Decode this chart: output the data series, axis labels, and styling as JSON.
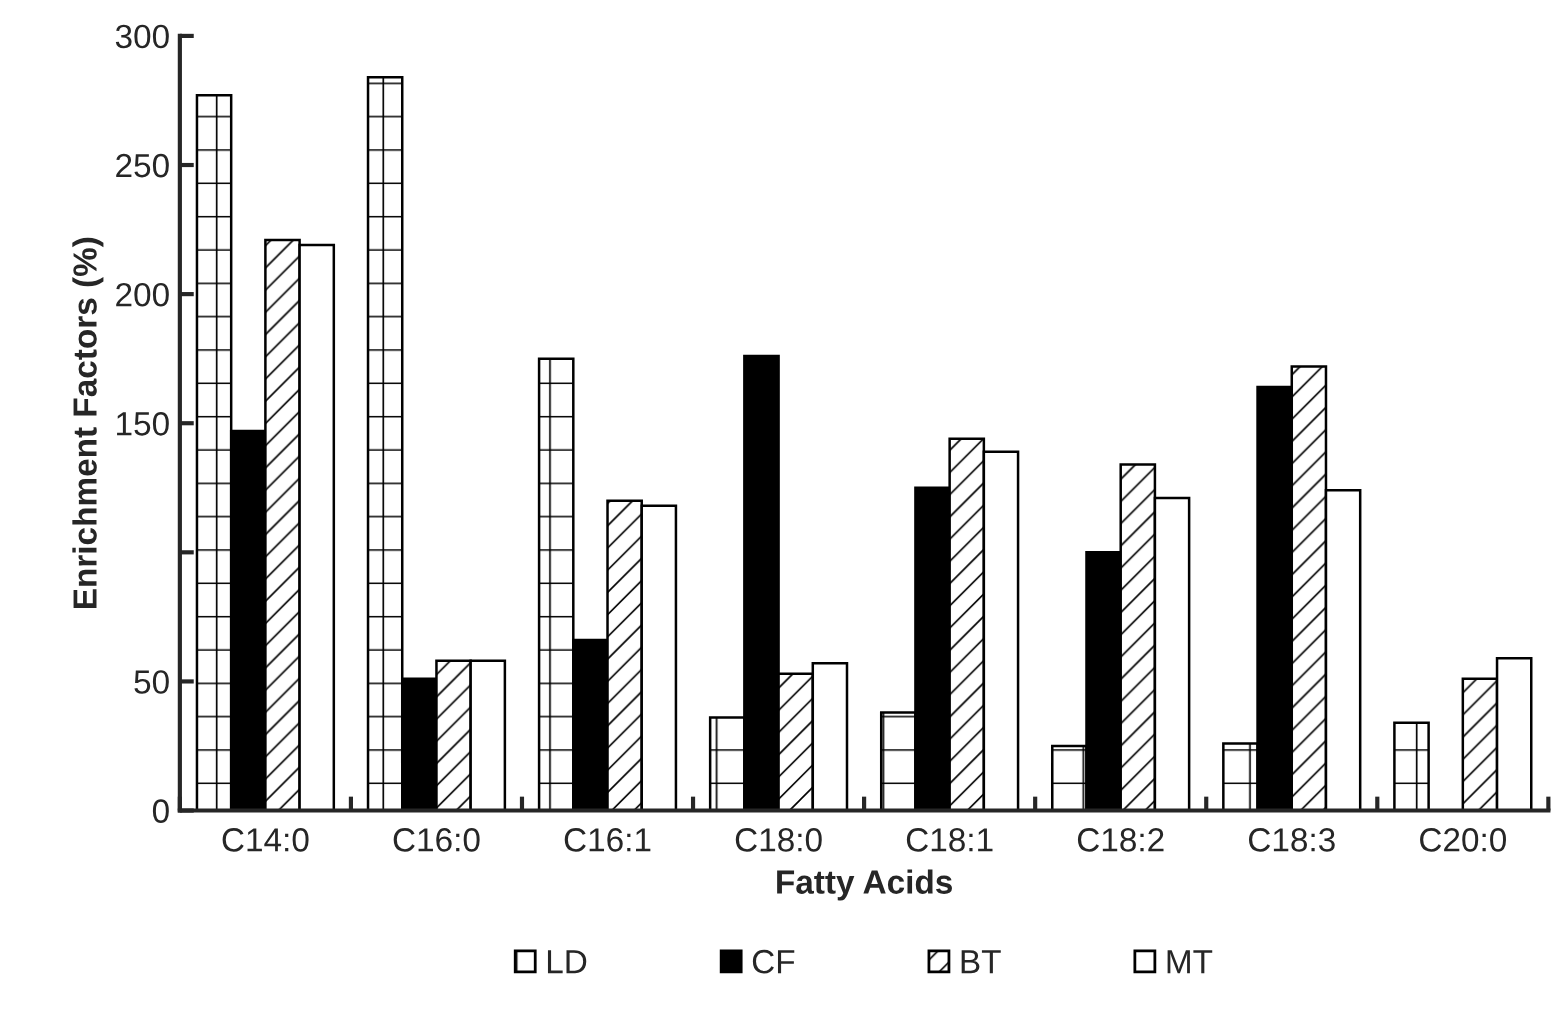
{
  "chart_data": {
    "type": "bar",
    "xlabel": "Fatty Acids",
    "ylabel": "Enrichment Factors (%)",
    "categories": [
      "C14:0",
      "C16:0",
      "C16:1",
      "C18:0",
      "C18:1",
      "C18:2",
      "C18:3",
      "C20:0"
    ],
    "series": [
      {
        "name": "LD",
        "color": "#ffffff",
        "values": [
          277,
          284,
          175,
          36,
          38,
          25,
          26,
          34
        ]
      },
      {
        "name": "CF",
        "color": "#000000",
        "values": [
          147,
          51,
          66,
          176,
          125,
          100,
          164,
          null
        ]
      },
      {
        "name": "BT",
        "color": "#ffffff",
        "values": [
          221,
          58,
          120,
          53,
          144,
          134,
          172,
          51
        ]
      },
      {
        "name": "MT",
        "color": "#ffffff",
        "values": [
          219,
          58,
          118,
          57,
          139,
          121,
          124,
          59
        ]
      }
    ],
    "ylim": [
      0,
      300
    ],
    "yticks": [
      0,
      50,
      {
        "value": 100,
        "label": null
      },
      150,
      200,
      250,
      300
    ],
    "grid": false,
    "legend": "bottom"
  }
}
